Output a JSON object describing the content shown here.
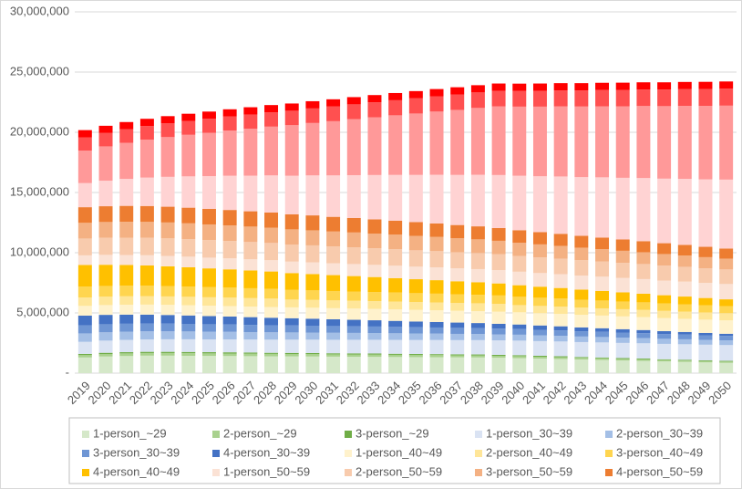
{
  "chart_data": {
    "type": "stacked_bar",
    "categories": [
      "2019",
      "2020",
      "2021",
      "2022",
      "2023",
      "2024",
      "2025",
      "2026",
      "2027",
      "2028",
      "2029",
      "2030",
      "2031",
      "2032",
      "2033",
      "2034",
      "2035",
      "2036",
      "2037",
      "2038",
      "2039",
      "2040",
      "2041",
      "2042",
      "2043",
      "2044",
      "2045",
      "2046",
      "2047",
      "2048",
      "2049",
      "2050"
    ],
    "ylim": [
      0,
      30000000
    ],
    "yticks": [
      {
        "value": 0,
        "label": "-"
      },
      {
        "value": 5000000,
        "label": "5,000,000"
      },
      {
        "value": 10000000,
        "label": "10,000,000"
      },
      {
        "value": 15000000,
        "label": "15,000,000"
      },
      {
        "value": 20000000,
        "label": "20,000,000"
      },
      {
        "value": 25000000,
        "label": "25,000,000"
      },
      {
        "value": 30000000,
        "label": "30,000,000"
      }
    ],
    "grid": true,
    "legend": "bottom",
    "series": [
      {
        "name": "1-person_~29",
        "color": "#d5e8c9",
        "values": [
          1300000,
          1380000,
          1420000,
          1450000,
          1450000,
          1440000,
          1430000,
          1420000,
          1410000,
          1400000,
          1390000,
          1380000,
          1370000,
          1360000,
          1350000,
          1340000,
          1330000,
          1320000,
          1310000,
          1300000,
          1280000,
          1250000,
          1210000,
          1170000,
          1130000,
          1090000,
          1050000,
          1010000,
          970000,
          930000,
          890000,
          850000
        ]
      },
      {
        "name": "2-person_~29",
        "color": "#a9d18e",
        "values": [
          200000,
          210000,
          220000,
          220000,
          220000,
          220000,
          210000,
          210000,
          210000,
          200000,
          200000,
          200000,
          190000,
          190000,
          190000,
          180000,
          180000,
          180000,
          170000,
          170000,
          160000,
          160000,
          150000,
          150000,
          140000,
          140000,
          130000,
          130000,
          120000,
          120000,
          110000,
          110000
        ]
      },
      {
        "name": "3-person_~29",
        "color": "#70ad47",
        "values": [
          100000,
          100000,
          100000,
          100000,
          100000,
          100000,
          100000,
          100000,
          90000,
          90000,
          90000,
          90000,
          90000,
          90000,
          90000,
          90000,
          80000,
          80000,
          80000,
          80000,
          80000,
          80000,
          80000,
          80000,
          70000,
          70000,
          70000,
          70000,
          60000,
          60000,
          60000,
          60000
        ]
      },
      {
        "name": "1-person_30~39",
        "color": "#dae3f3",
        "values": [
          1000000,
          1010000,
          1020000,
          1030000,
          1040000,
          1050000,
          1060000,
          1070000,
          1080000,
          1090000,
          1100000,
          1110000,
          1120000,
          1130000,
          1140000,
          1150000,
          1160000,
          1170000,
          1180000,
          1190000,
          1200000,
          1210000,
          1220000,
          1230000,
          1240000,
          1250000,
          1260000,
          1270000,
          1280000,
          1290000,
          1300000,
          1310000
        ]
      },
      {
        "name": "2-person_30~39",
        "color": "#a4bfe6",
        "values": [
          700000,
          690000,
          680000,
          670000,
          660000,
          650000,
          640000,
          630000,
          620000,
          610000,
          600000,
          590000,
          580000,
          570000,
          560000,
          550000,
          540000,
          530000,
          520000,
          510000,
          500000,
          490000,
          480000,
          470000,
          460000,
          450000,
          440000,
          430000,
          420000,
          410000,
          400000,
          390000
        ]
      },
      {
        "name": "3-person_30~39",
        "color": "#6f96d4",
        "values": [
          680000,
          670000,
          660000,
          650000,
          640000,
          630000,
          620000,
          610000,
          600000,
          590000,
          580000,
          570000,
          560000,
          550000,
          540000,
          530000,
          520000,
          510000,
          500000,
          490000,
          480000,
          470000,
          460000,
          450000,
          440000,
          430000,
          420000,
          410000,
          400000,
          390000,
          380000,
          370000
        ]
      },
      {
        "name": "4-person_30~39",
        "color": "#4472c4",
        "values": [
          800000,
          780000,
          760000,
          740000,
          720000,
          700000,
          680000,
          660000,
          640000,
          620000,
          600000,
          580000,
          560000,
          540000,
          520000,
          500000,
          480000,
          460000,
          440000,
          420000,
          400000,
          380000,
          360000,
          340000,
          320000,
          300000,
          280000,
          260000,
          240000,
          220000,
          200000,
          180000
        ]
      },
      {
        "name": "1-person_40~49",
        "color": "#fff2cc",
        "values": [
          800000,
          810000,
          820000,
          830000,
          840000,
          850000,
          860000,
          870000,
          880000,
          890000,
          900000,
          910000,
          920000,
          930000,
          940000,
          950000,
          960000,
          970000,
          980000,
          990000,
          1000000,
          1010000,
          1020000,
          1030000,
          1040000,
          1050000,
          1060000,
          1070000,
          1080000,
          1090000,
          1100000,
          1110000
        ]
      },
      {
        "name": "2-person_40~49",
        "color": "#ffe699",
        "values": [
          700000,
          700000,
          700000,
          700000,
          700000,
          700000,
          700000,
          700000,
          700000,
          700000,
          650000,
          650000,
          650000,
          650000,
          650000,
          650000,
          650000,
          650000,
          650000,
          650000,
          650000,
          600000,
          600000,
          600000,
          600000,
          600000,
          600000,
          600000,
          600000,
          600000,
          600000,
          600000
        ]
      },
      {
        "name": "3-person_40~49",
        "color": "#ffd54f",
        "values": [
          900000,
          890000,
          880000,
          870000,
          860000,
          850000,
          840000,
          830000,
          820000,
          810000,
          800000,
          790000,
          780000,
          770000,
          760000,
          750000,
          740000,
          730000,
          720000,
          710000,
          700000,
          690000,
          680000,
          670000,
          660000,
          650000,
          640000,
          630000,
          620000,
          610000,
          600000,
          590000
        ]
      },
      {
        "name": "4-person_40~49",
        "color": "#ffc000",
        "values": [
          1800000,
          1760000,
          1720000,
          1680000,
          1640000,
          1600000,
          1560000,
          1520000,
          1480000,
          1440000,
          1400000,
          1360000,
          1320000,
          1280000,
          1240000,
          1200000,
          1160000,
          1120000,
          1080000,
          1040000,
          1000000,
          960000,
          920000,
          880000,
          840000,
          800000,
          760000,
          720000,
          680000,
          640000,
          600000,
          560000
        ]
      },
      {
        "name": "1-person_50~59",
        "color": "#fbe2d5",
        "values": [
          800000,
          820000,
          830000,
          850000,
          860000,
          880000,
          890000,
          910000,
          920000,
          940000,
          950000,
          970000,
          980000,
          1000000,
          1010000,
          1030000,
          1040000,
          1060000,
          1070000,
          1090000,
          1100000,
          1120000,
          1130000,
          1150000,
          1160000,
          1180000,
          1190000,
          1210000,
          1220000,
          1240000,
          1250000,
          1270000
        ]
      },
      {
        "name": "2-person_50~59",
        "color": "#f8cbad",
        "values": [
          1400000,
          1420000,
          1440000,
          1450000,
          1460000,
          1460000,
          1460000,
          1450000,
          1440000,
          1430000,
          1420000,
          1410000,
          1400000,
          1390000,
          1380000,
          1370000,
          1360000,
          1350000,
          1340000,
          1330000,
          1320000,
          1310000,
          1300000,
          1290000,
          1280000,
          1270000,
          1260000,
          1250000,
          1240000,
          1230000,
          1220000,
          1210000
        ]
      },
      {
        "name": "3-person_50~59",
        "color": "#f4b183",
        "values": [
          1300000,
          1310000,
          1320000,
          1320000,
          1320000,
          1310000,
          1300000,
          1290000,
          1280000,
          1270000,
          1260000,
          1250000,
          1240000,
          1230000,
          1220000,
          1210000,
          1200000,
          1180000,
          1160000,
          1140000,
          1120000,
          1100000,
          1080000,
          1060000,
          1040000,
          1020000,
          1000000,
          980000,
          960000,
          940000,
          920000,
          900000
        ]
      },
      {
        "name": "4-person_50~59",
        "color": "#ed7d31",
        "values": [
          1300000,
          1310000,
          1320000,
          1320000,
          1310000,
          1300000,
          1290000,
          1280000,
          1270000,
          1260000,
          1250000,
          1240000,
          1220000,
          1200000,
          1180000,
          1160000,
          1140000,
          1120000,
          1100000,
          1080000,
          1060000,
          1040000,
          1020000,
          1000000,
          980000,
          960000,
          940000,
          920000,
          900000,
          880000,
          860000,
          840000
        ]
      },
      {
        "color": "#ffd3d3",
        "values": [
          2000000,
          2120000,
          2240000,
          2360000,
          2480000,
          2600000,
          2720000,
          2840000,
          2960000,
          3080000,
          3200000,
          3320000,
          3440000,
          3560000,
          3680000,
          3800000,
          3920000,
          4040000,
          4160000,
          4280000,
          4400000,
          4520000,
          4640000,
          4760000,
          4880000,
          5000000,
          5120000,
          5240000,
          5360000,
          5480000,
          5600000,
          5720000
        ]
      },
      {
        "color": "#ff9999",
        "values": [
          2700000,
          2850000,
          3000000,
          3150000,
          3300000,
          3450000,
          3600000,
          3750000,
          3900000,
          4050000,
          4200000,
          4350000,
          4500000,
          4650000,
          4800000,
          4950000,
          5100000,
          5250000,
          5400000,
          5550000,
          5700000,
          5740000,
          5780000,
          5820000,
          5860000,
          5900000,
          5940000,
          5980000,
          6020000,
          6060000,
          6100000,
          6140000
        ]
      },
      {
        "color": "#ff5050",
        "values": [
          1100000,
          1110000,
          1120000,
          1130000,
          1140000,
          1150000,
          1160000,
          1170000,
          1180000,
          1190000,
          1200000,
          1210000,
          1220000,
          1230000,
          1240000,
          1250000,
          1260000,
          1270000,
          1280000,
          1290000,
          1300000,
          1310000,
          1320000,
          1330000,
          1340000,
          1350000,
          1360000,
          1370000,
          1380000,
          1390000,
          1400000,
          1410000
        ]
      },
      {
        "color": "#ff0000",
        "values": [
          600000,
          600000,
          600000,
          600000,
          600000,
          600000,
          600000,
          600000,
          600000,
          600000,
          600000,
          600000,
          600000,
          600000,
          600000,
          600000,
          600000,
          600000,
          600000,
          600000,
          600000,
          600000,
          600000,
          600000,
          600000,
          600000,
          600000,
          600000,
          600000,
          600000,
          600000,
          600000
        ]
      }
    ]
  }
}
